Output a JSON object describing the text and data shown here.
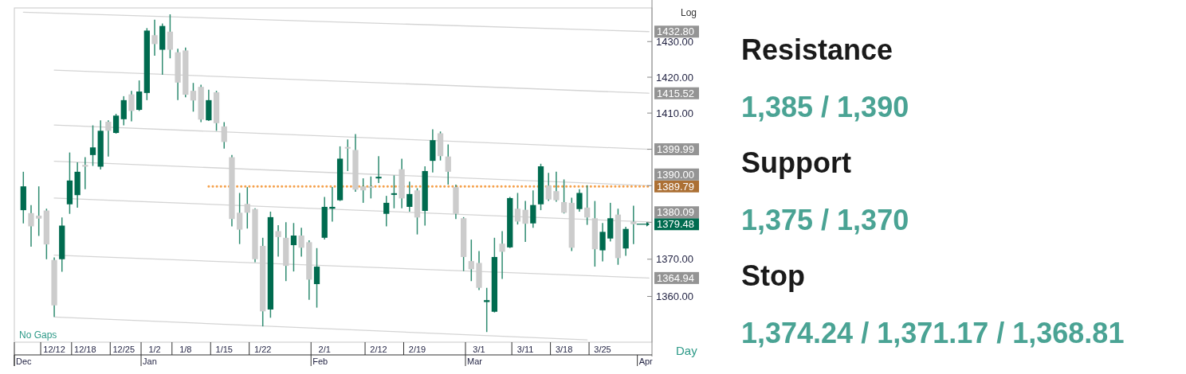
{
  "chart_data": [
    {
      "type": "candlestick",
      "log": true,
      "ylim": [
        1347.8,
        1439.5
      ],
      "yticks": [
        {
          "value": 1360,
          "label": "1360.00"
        },
        {
          "value": 1370,
          "label": "1370.00"
        },
        {
          "value": 1380,
          "label": null
        },
        {
          "value": 1390,
          "label": null
        },
        {
          "value": 1400,
          "label": null
        },
        {
          "value": 1410,
          "label": "1410.00"
        },
        {
          "value": 1420,
          "label": "1420.00"
        },
        {
          "value": 1430,
          "label": "1430.00"
        }
      ],
      "categories": [
        null,
        null,
        null,
        null,
        "12/12",
        null,
        null,
        null,
        "12/18",
        null,
        null,
        null,
        null,
        "12/25",
        null,
        null,
        null,
        "1/2",
        null,
        null,
        null,
        "1/8",
        null,
        null,
        null,
        null,
        "1/15",
        null,
        null,
        null,
        null,
        "1/22",
        null,
        null,
        null,
        null,
        null,
        null,
        null,
        "2/1",
        null,
        null,
        null,
        null,
        null,
        null,
        "2/12",
        null,
        null,
        null,
        null,
        "2/19",
        null,
        null,
        null,
        null,
        null,
        null,
        null,
        "3/1",
        null,
        null,
        null,
        null,
        null,
        "3/11",
        null,
        null,
        null,
        null,
        "3/18",
        null,
        null,
        null,
        null,
        "3/25",
        null,
        null,
        null,
        null,
        null,
        null
      ],
      "ohlc": [
        [
          1383.3,
          1393.8,
          1379.7,
          1389.8
        ],
        [
          1382.5,
          1384.7,
          1373.4,
          1378.9
        ],
        [
          1381.8,
          1389.8,
          1376.3,
          1381.0
        ],
        [
          1383.2,
          1383.7,
          1370.0,
          1374.0
        ],
        [
          1369.8,
          1370.5,
          1354.5,
          1357.6
        ],
        [
          1370.0,
          1381.3,
          1366.6,
          1379.1
        ],
        [
          1384.9,
          1399.1,
          1382.3,
          1391.4
        ],
        [
          1387.4,
          1396.4,
          1384.0,
          1393.8
        ],
        [
          1395.7,
          1397.8,
          1389.0,
          1395.2
        ],
        [
          1398.4,
          1406.6,
          1395.4,
          1400.5
        ],
        [
          1395.2,
          1408.0,
          1394.4,
          1405.1
        ],
        [
          1407.6,
          1408.0,
          1398.0,
          1405.1
        ],
        [
          1404.5,
          1409.8,
          1404.3,
          1409.3
        ],
        [
          1408.3,
          1414.7,
          1406.6,
          1413.6
        ],
        [
          1415.2,
          1416.2,
          1407.7,
          1410.6
        ],
        [
          1410.9,
          1419.1,
          1410.6,
          1416.0
        ],
        [
          1415.6,
          1433.8,
          1413.6,
          1433.1
        ],
        [
          1431.8,
          1436.2,
          1426.0,
          1429.3
        ],
        [
          1427.7,
          1435.1,
          1420.7,
          1434.4
        ],
        [
          1432.8,
          1437.7,
          1425.3,
          1427.7
        ],
        [
          1427.0,
          1428.0,
          1413.6,
          1418.5
        ],
        [
          1427.5,
          1428.3,
          1414.4,
          1415.1
        ],
        [
          1416.2,
          1418.4,
          1410.4,
          1413.5
        ],
        [
          1417.3,
          1417.9,
          1407.5,
          1408.2
        ],
        [
          1408.0,
          1416.5,
          1407.8,
          1413.6
        ],
        [
          1415.8,
          1416.2,
          1405.1,
          1407.2
        ],
        [
          1406.3,
          1407.5,
          1400.2,
          1402.0
        ],
        [
          1397.8,
          1398.4,
          1378.9,
          1380.9
        ],
        [
          1382.6,
          1388.0,
          1374.1,
          1378.0
        ],
        [
          1385.0,
          1389.6,
          1378.3,
          1382.6
        ],
        [
          1383.6,
          1383.8,
          1369.2,
          1370.0
        ],
        [
          1373.6,
          1375.8,
          1352.0,
          1356.0
        ],
        [
          1356.5,
          1382.9,
          1354.3,
          1381.4
        ],
        [
          1377.6,
          1379.2,
          1370.7,
          1376.0
        ],
        [
          1375.8,
          1380.0,
          1364.1,
          1368.2
        ],
        [
          1373.8,
          1379.8,
          1366.7,
          1376.4
        ],
        [
          1376.4,
          1378.5,
          1370.7,
          1373.1
        ],
        [
          1374.6,
          1375.1,
          1359.1,
          1364.5
        ],
        [
          1363.3,
          1373.0,
          1357.0,
          1368.0
        ],
        [
          1375.8,
          1386.9,
          1375.3,
          1384.2
        ],
        [
          1383.7,
          1389.6,
          1380.2,
          1384.2
        ],
        [
          1386.0,
          1400.8,
          1385.8,
          1397.4
        ],
        [
          1400.4,
          1402.7,
          1394.0,
          1400.2
        ],
        [
          1399.8,
          1404.2,
          1388.3,
          1388.9
        ],
        [
          1389.8,
          1392.0,
          1385.3,
          1388.7
        ],
        [
          1389.6,
          1392.5,
          1386.5,
          1389.4
        ],
        [
          1391.8,
          1398.1,
          1390.7,
          1392.2
        ],
        [
          1382.3,
          1387.2,
          1378.9,
          1385.3
        ],
        [
          1387.3,
          1392.8,
          1383.8,
          1387.7
        ],
        [
          1394.5,
          1397.4,
          1383.8,
          1386.5
        ],
        [
          1384.2,
          1391.1,
          1382.9,
          1387.7
        ],
        [
          1388.7,
          1389.3,
          1376.7,
          1381.3
        ],
        [
          1383.1,
          1395.3,
          1379.1,
          1394.0
        ],
        [
          1396.8,
          1405.5,
          1393.6,
          1402.5
        ],
        [
          1404.4,
          1404.9,
          1396.9,
          1398.1
        ],
        [
          1398.0,
          1401.3,
          1390.3,
          1393.8
        ],
        [
          1389.6,
          1390.3,
          1380.9,
          1382.3
        ],
        [
          1381.1,
          1381.4,
          1366.8,
          1370.6
        ],
        [
          1369.5,
          1375.3,
          1364.1,
          1367.3
        ],
        [
          1369.0,
          1372.2,
          1361.7,
          1362.3
        ],
        [
          1358.5,
          1362.3,
          1350.5,
          1359.0
        ],
        [
          1355.9,
          1375.8,
          1355.7,
          1370.6
        ],
        [
          1374.2,
          1377.6,
          1364.7,
          1372.0
        ],
        [
          1373.2,
          1386.9,
          1373.0,
          1386.6
        ],
        [
          1383.7,
          1388.0,
          1379.4,
          1380.2
        ],
        [
          1383.4,
          1385.8,
          1374.7,
          1379.6
        ],
        [
          1379.7,
          1388.7,
          1378.5,
          1384.7
        ],
        [
          1384.9,
          1396.0,
          1383.3,
          1395.3
        ],
        [
          1390.0,
          1393.5,
          1385.8,
          1386.2
        ],
        [
          1388.5,
          1393.8,
          1385.6,
          1386.0
        ],
        [
          1385.5,
          1391.7,
          1382.4,
          1382.6
        ],
        [
          1385.3,
          1386.7,
          1372.2,
          1373.1
        ],
        [
          1383.6,
          1389.0,
          1382.9,
          1388.0
        ],
        [
          1384.0,
          1390.1,
          1379.3,
          1381.3
        ],
        [
          1381.1,
          1385.8,
          1368.0,
          1372.7
        ],
        [
          1372.4,
          1379.8,
          1369.4,
          1377.4
        ],
        [
          1375.6,
          1385.3,
          1374.8,
          1381.1
        ],
        [
          1382.1,
          1383.7,
          1368.5,
          1370.3
        ],
        [
          1372.9,
          1378.8,
          1370.9,
          1378.2
        ],
        [
          1380.2,
          1384.5,
          1374.1,
          1379.48
        ],
        null,
        null
      ],
      "series": [
        {
          "type": "line",
          "color": "#d4d4d4",
          "values": [
            1438.3,
            null,
            null,
            null,
            null,
            null,
            null,
            null,
            null,
            null,
            null,
            null,
            null,
            null,
            null,
            null,
            null,
            null,
            null,
            null,
            null,
            null,
            null,
            null,
            null,
            null,
            null,
            null,
            null,
            null,
            null,
            null,
            null,
            null,
            null,
            null,
            null,
            null,
            null,
            null,
            null,
            null,
            null,
            null,
            null,
            null,
            null,
            null,
            null,
            null,
            null,
            null,
            null,
            null,
            null,
            null,
            null,
            null,
            null,
            null,
            null,
            null,
            null,
            null,
            null,
            null,
            null,
            null,
            null,
            null,
            null,
            null,
            null,
            null,
            null,
            null,
            null,
            null,
            null,
            null,
            null,
            1432.8
          ],
          "value_labels": [
            null,
            null,
            null,
            null,
            null,
            null,
            null,
            null,
            null,
            null,
            null,
            null,
            null,
            null,
            null,
            null,
            null,
            null,
            null,
            null,
            null,
            null,
            null,
            null,
            null,
            null,
            null,
            null,
            null,
            null,
            null,
            null,
            null,
            null,
            null,
            null,
            null,
            null,
            null,
            null,
            null,
            null,
            null,
            null,
            null,
            null,
            null,
            null,
            null,
            null,
            null,
            null,
            null,
            null,
            null,
            null,
            null,
            null,
            null,
            null,
            null,
            null,
            null,
            null,
            null,
            null,
            null,
            null,
            null,
            null,
            null,
            null,
            null,
            null,
            null,
            null,
            null,
            null,
            null,
            null,
            null,
            "1432.80"
          ]
        },
        {
          "type": "line",
          "color": "#d4d4d4",
          "values": [
            null,
            null,
            null,
            null,
            1422.0,
            null,
            null,
            null,
            null,
            null,
            null,
            null,
            null,
            null,
            null,
            null,
            null,
            null,
            null,
            null,
            null,
            null,
            null,
            null,
            null,
            null,
            null,
            null,
            null,
            null,
            null,
            null,
            null,
            null,
            null,
            null,
            null,
            null,
            null,
            null,
            null,
            null,
            null,
            null,
            null,
            null,
            null,
            null,
            null,
            null,
            null,
            null,
            null,
            null,
            null,
            null,
            null,
            null,
            null,
            null,
            null,
            null,
            null,
            null,
            null,
            null,
            null,
            null,
            null,
            null,
            null,
            null,
            null,
            null,
            null,
            null,
            null,
            null,
            null,
            null,
            null,
            1415.52
          ],
          "value_labels": [
            null,
            null,
            null,
            null,
            null,
            null,
            null,
            null,
            null,
            null,
            null,
            null,
            null,
            null,
            null,
            null,
            null,
            null,
            null,
            null,
            null,
            null,
            null,
            null,
            null,
            null,
            null,
            null,
            null,
            null,
            null,
            null,
            null,
            null,
            null,
            null,
            null,
            null,
            null,
            null,
            null,
            null,
            null,
            null,
            null,
            null,
            null,
            null,
            null,
            null,
            null,
            null,
            null,
            null,
            null,
            null,
            null,
            null,
            null,
            null,
            null,
            null,
            null,
            null,
            null,
            null,
            null,
            null,
            null,
            null,
            null,
            null,
            null,
            null,
            null,
            null,
            null,
            null,
            null,
            null,
            null,
            "1415.52"
          ]
        },
        {
          "type": "line",
          "color": "#d4d4d4",
          "values": [
            null,
            null,
            null,
            null,
            1406.7,
            null,
            null,
            null,
            null,
            null,
            null,
            null,
            null,
            null,
            null,
            null,
            null,
            null,
            null,
            null,
            null,
            null,
            null,
            null,
            null,
            null,
            null,
            null,
            null,
            null,
            null,
            null,
            null,
            null,
            null,
            null,
            null,
            null,
            null,
            null,
            null,
            null,
            null,
            null,
            null,
            null,
            null,
            null,
            null,
            null,
            null,
            null,
            null,
            null,
            null,
            null,
            null,
            null,
            null,
            null,
            null,
            null,
            null,
            null,
            null,
            null,
            null,
            null,
            null,
            null,
            null,
            null,
            null,
            null,
            null,
            null,
            null,
            null,
            null,
            null,
            null,
            1399.99
          ],
          "value_labels": [
            null,
            null,
            null,
            null,
            null,
            null,
            null,
            null,
            null,
            null,
            null,
            null,
            null,
            null,
            null,
            null,
            null,
            null,
            null,
            null,
            null,
            null,
            null,
            null,
            null,
            null,
            null,
            null,
            null,
            null,
            null,
            null,
            null,
            null,
            null,
            null,
            null,
            null,
            null,
            null,
            null,
            null,
            null,
            null,
            null,
            null,
            null,
            null,
            null,
            null,
            null,
            null,
            null,
            null,
            null,
            null,
            null,
            null,
            null,
            null,
            null,
            null,
            null,
            null,
            null,
            null,
            null,
            null,
            null,
            null,
            null,
            null,
            null,
            null,
            null,
            null,
            null,
            null,
            null,
            null,
            null,
            "1399.99"
          ]
        },
        {
          "type": "line",
          "color": "#d4d4d4",
          "values": [
            null,
            null,
            null,
            null,
            1396.7,
            null,
            null,
            null,
            null,
            null,
            null,
            null,
            null,
            null,
            null,
            null,
            null,
            null,
            null,
            null,
            null,
            null,
            null,
            null,
            null,
            null,
            null,
            null,
            null,
            null,
            null,
            null,
            null,
            null,
            null,
            null,
            null,
            null,
            null,
            null,
            null,
            null,
            null,
            null,
            null,
            null,
            null,
            null,
            null,
            null,
            null,
            null,
            null,
            null,
            null,
            null,
            null,
            null,
            null,
            null,
            null,
            null,
            null,
            null,
            null,
            null,
            null,
            null,
            null,
            null,
            null,
            null,
            null,
            null,
            null,
            null,
            null,
            null,
            null,
            null,
            null,
            1390.0
          ],
          "value_labels": [
            null,
            null,
            null,
            null,
            null,
            null,
            null,
            null,
            null,
            null,
            null,
            null,
            null,
            null,
            null,
            null,
            null,
            null,
            null,
            null,
            null,
            null,
            null,
            null,
            null,
            null,
            null,
            null,
            null,
            null,
            null,
            null,
            null,
            null,
            null,
            null,
            null,
            null,
            null,
            null,
            null,
            null,
            null,
            null,
            null,
            null,
            null,
            null,
            null,
            null,
            null,
            null,
            null,
            null,
            null,
            null,
            null,
            null,
            null,
            null,
            null,
            null,
            null,
            null,
            null,
            null,
            null,
            null,
            null,
            null,
            null,
            null,
            null,
            null,
            null,
            null,
            null,
            null,
            null,
            null,
            null,
            "1390.00"
          ]
        },
        {
          "type": "line",
          "color": "#d4d4d4",
          "values": [
            null,
            null,
            null,
            null,
            1386.6,
            null,
            null,
            null,
            null,
            null,
            null,
            null,
            null,
            null,
            null,
            null,
            null,
            null,
            null,
            null,
            null,
            null,
            null,
            null,
            null,
            null,
            null,
            null,
            null,
            null,
            null,
            null,
            null,
            null,
            null,
            null,
            null,
            null,
            null,
            null,
            null,
            null,
            null,
            null,
            null,
            null,
            null,
            null,
            null,
            null,
            null,
            null,
            null,
            null,
            null,
            null,
            null,
            null,
            null,
            null,
            null,
            null,
            null,
            null,
            null,
            null,
            null,
            null,
            null,
            null,
            null,
            null,
            null,
            null,
            null,
            null,
            null,
            null,
            null,
            null,
            null,
            1380.09
          ],
          "value_labels": [
            null,
            null,
            null,
            null,
            null,
            null,
            null,
            null,
            null,
            null,
            null,
            null,
            null,
            null,
            null,
            null,
            null,
            null,
            null,
            null,
            null,
            null,
            null,
            null,
            null,
            null,
            null,
            null,
            null,
            null,
            null,
            null,
            null,
            null,
            null,
            null,
            null,
            null,
            null,
            null,
            null,
            null,
            null,
            null,
            null,
            null,
            null,
            null,
            null,
            null,
            null,
            null,
            null,
            null,
            null,
            null,
            null,
            null,
            null,
            null,
            null,
            null,
            null,
            null,
            null,
            null,
            null,
            null,
            null,
            null,
            null,
            null,
            null,
            null,
            null,
            null,
            null,
            null,
            null,
            null,
            null,
            "1380.09"
          ]
        },
        {
          "type": "line",
          "color": "#d4d4d4",
          "values": [
            null,
            null,
            null,
            null,
            1371.1,
            null,
            null,
            null,
            null,
            null,
            null,
            null,
            null,
            null,
            null,
            null,
            null,
            null,
            null,
            null,
            null,
            null,
            null,
            null,
            null,
            null,
            null,
            null,
            null,
            null,
            null,
            null,
            null,
            null,
            null,
            null,
            null,
            null,
            null,
            null,
            null,
            null,
            null,
            null,
            null,
            null,
            null,
            null,
            null,
            null,
            null,
            null,
            null,
            null,
            null,
            null,
            null,
            null,
            null,
            null,
            null,
            null,
            null,
            null,
            null,
            null,
            null,
            null,
            null,
            null,
            null,
            null,
            null,
            null,
            null,
            null,
            null,
            null,
            null,
            null,
            null,
            1364.94
          ],
          "value_labels": [
            null,
            null,
            null,
            null,
            null,
            null,
            null,
            null,
            null,
            null,
            null,
            null,
            null,
            null,
            null,
            null,
            null,
            null,
            null,
            null,
            null,
            null,
            null,
            null,
            null,
            null,
            null,
            null,
            null,
            null,
            null,
            null,
            null,
            null,
            null,
            null,
            null,
            null,
            null,
            null,
            null,
            null,
            null,
            null,
            null,
            null,
            null,
            null,
            null,
            null,
            null,
            null,
            null,
            null,
            null,
            null,
            null,
            null,
            null,
            null,
            null,
            null,
            null,
            null,
            null,
            null,
            null,
            null,
            null,
            null,
            null,
            null,
            null,
            null,
            null,
            null,
            null,
            null,
            null,
            null,
            null,
            "1364.94"
          ]
        },
        {
          "type": "line",
          "color": "#d4d4d4",
          "values": [
            null,
            null,
            null,
            null,
            1354.5,
            null,
            null,
            null,
            null,
            null,
            null,
            null,
            null,
            null,
            null,
            null,
            null,
            null,
            null,
            null,
            null,
            null,
            null,
            null,
            null,
            null,
            null,
            null,
            null,
            null,
            null,
            null,
            null,
            null,
            null,
            null,
            null,
            null,
            null,
            null,
            null,
            null,
            null,
            null,
            null,
            null,
            null,
            null,
            null,
            null,
            null,
            null,
            null,
            null,
            null,
            null,
            null,
            null,
            null,
            null,
            null,
            null,
            null,
            null,
            null,
            null,
            null,
            null,
            null,
            null,
            null,
            null,
            null,
            1348.4,
            null,
            null,
            null,
            null,
            null,
            null,
            null,
            null
          ]
        },
        {
          "type": "line",
          "color": "#f5a04a",
          "line_style": "dotted",
          "values": [
            null,
            null,
            null,
            null,
            null,
            null,
            null,
            null,
            null,
            null,
            null,
            null,
            null,
            null,
            null,
            null,
            null,
            null,
            null,
            null,
            null,
            null,
            null,
            null,
            1389.79,
            null,
            null,
            null,
            null,
            null,
            null,
            null,
            null,
            null,
            null,
            null,
            null,
            null,
            null,
            null,
            null,
            null,
            null,
            null,
            null,
            null,
            null,
            null,
            null,
            null,
            null,
            null,
            null,
            null,
            null,
            null,
            null,
            null,
            null,
            null,
            null,
            null,
            null,
            null,
            null,
            null,
            null,
            null,
            null,
            null,
            null,
            null,
            null,
            null,
            null,
            null,
            null,
            null,
            null,
            null,
            null,
            1389.79
          ],
          "value_labels": [
            null,
            null,
            null,
            null,
            null,
            null,
            null,
            null,
            null,
            null,
            null,
            null,
            null,
            null,
            null,
            null,
            null,
            null,
            null,
            null,
            null,
            null,
            null,
            null,
            null,
            null,
            null,
            null,
            null,
            null,
            null,
            null,
            null,
            null,
            null,
            null,
            null,
            null,
            null,
            null,
            null,
            null,
            null,
            null,
            null,
            null,
            null,
            null,
            null,
            null,
            null,
            null,
            null,
            null,
            null,
            null,
            null,
            null,
            null,
            null,
            null,
            null,
            null,
            null,
            null,
            null,
            null,
            null,
            null,
            null,
            null,
            null,
            null,
            null,
            null,
            null,
            null,
            null,
            null,
            null,
            null,
            "1389.79"
          ]
        }
      ],
      "ref_lines": [
        {
          "axis": "y",
          "value": 1379.48,
          "label": "1379.48",
          "color": "#006b4f"
        }
      ],
      "annotations": [
        "Log",
        "No Gaps",
        "Day",
        "Dec",
        "Jan",
        "Feb",
        "Mar",
        "Apr"
      ]
    },
    {
      "type": "other",
      "annotations": [
        "Resistance",
        "1,385 / 1,390",
        "Support",
        "1,375 / 1,370",
        "Stop",
        "1,374.24 / 1,371.17 / 1,368.81"
      ]
    }
  ]
}
